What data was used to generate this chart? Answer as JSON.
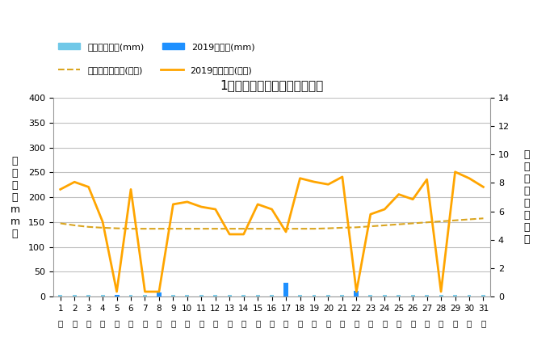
{
  "title": "1月降水量・日照時間（日別）",
  "days": [
    1,
    2,
    3,
    4,
    5,
    6,
    7,
    8,
    9,
    10,
    11,
    12,
    13,
    14,
    15,
    16,
    17,
    18,
    19,
    20,
    21,
    22,
    23,
    24,
    25,
    26,
    27,
    28,
    29,
    30,
    31
  ],
  "rain_2019": [
    0,
    0,
    0,
    0,
    3,
    0,
    0,
    9,
    0,
    0,
    0,
    0,
    0,
    0,
    0,
    0,
    28,
    0,
    0,
    0,
    0,
    12,
    0,
    0,
    0,
    0,
    0,
    0,
    0,
    0,
    0
  ],
  "rain_avg": [
    4,
    4,
    4,
    4,
    4,
    4,
    4,
    4,
    4,
    4,
    4,
    4,
    4,
    4,
    4,
    4,
    4,
    4,
    4,
    4,
    4,
    4,
    4,
    4,
    4,
    4,
    4,
    4,
    4,
    4,
    4
  ],
  "sunshine_2019": [
    7.55,
    8.07,
    7.72,
    5.27,
    0.35,
    7.55,
    0.35,
    0.35,
    6.5,
    6.67,
    6.32,
    6.15,
    4.39,
    4.39,
    6.5,
    6.15,
    4.56,
    8.33,
    8.08,
    7.9,
    8.43,
    0.35,
    5.8,
    6.15,
    7.2,
    6.85,
    8.25,
    0.35,
    8.78,
    8.33,
    7.72
  ],
  "sunshine_avg": [
    5.16,
    5.02,
    4.91,
    4.85,
    4.81,
    4.78,
    4.78,
    4.78,
    4.78,
    4.78,
    4.78,
    4.78,
    4.78,
    4.78,
    4.78,
    4.78,
    4.78,
    4.78,
    4.78,
    4.81,
    4.85,
    4.88,
    4.95,
    5.02,
    5.09,
    5.16,
    5.23,
    5.3,
    5.37,
    5.44,
    5.51
  ],
  "ylabel_left": "降\n水\n量\n（\nm\nm\n）",
  "ylabel_right": "日\n照\n時\n間\n（\n時\n間\n）",
  "ylim_left": [
    0,
    400
  ],
  "ylim_right": [
    0,
    14
  ],
  "yticks_left": [
    0,
    50,
    100,
    150,
    200,
    250,
    300,
    350,
    400
  ],
  "yticks_right": [
    0,
    2,
    4,
    6,
    8,
    10,
    12,
    14
  ],
  "rain_avg_color": "#70C8E8",
  "rain_2019_color": "#1E90FF",
  "sunshine_avg_color": "#DAA520",
  "sunshine_2019_color": "#FFA500",
  "background_color": "#ffffff",
  "legend_label_rain_avg": "降水量平年値(mm)",
  "legend_label_rain_2019": "2019降水量(mm)",
  "legend_label_sun_avg": "日照時間平年値(時間)",
  "legend_label_sun_2019": "2019日照時間(時間)",
  "ji_label": "日"
}
